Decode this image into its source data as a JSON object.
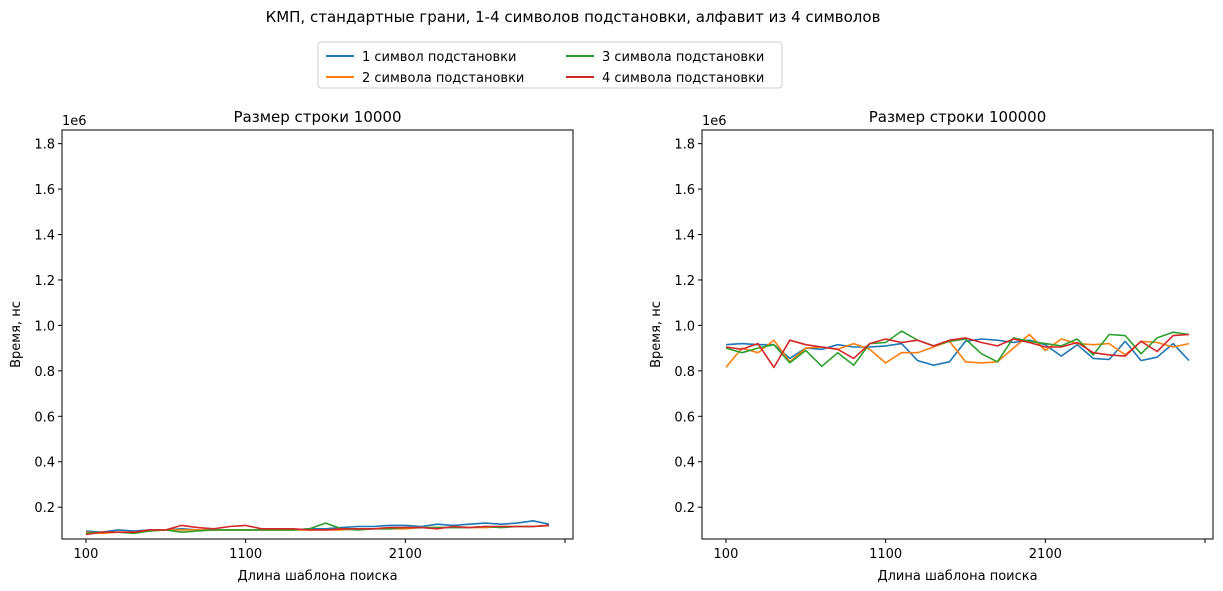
{
  "suptitle": "КМП, стандартные грани, 1-4 символов подстановки, алфавит из 4 символов",
  "legend": {
    "placement": "top-center",
    "entries": [
      {
        "label": "1 символ подстановки",
        "color": "#1f77b4"
      },
      {
        "label": "2 символа подстановки",
        "color": "#ff7f0e"
      },
      {
        "label": "3 символа подстановки",
        "color": "#2ca02c"
      },
      {
        "label": "4 символа подстановки",
        "color": "#d62728"
      }
    ]
  },
  "chart_data": [
    {
      "type": "line",
      "title": "Размер строки 10000",
      "xlabel": "Длина шаблона поиска",
      "ylabel": "Время, нс",
      "y_offset_label": "1e6",
      "xlim": [
        -50,
        3150
      ],
      "ylim": [
        0.06,
        1.86
      ],
      "xticks": [
        100,
        1100,
        2100,
        3100
      ],
      "xtick_labels": [
        "100",
        "1100",
        "2100",
        ""
      ],
      "yticks": [
        0.2,
        0.4,
        0.6,
        0.8,
        1.0,
        1.2,
        1.4,
        1.6,
        1.8
      ],
      "ytick_labels": [
        "0.2",
        "0.4",
        "0.6",
        "0.8",
        "1.0",
        "1.2",
        "1.4",
        "1.6",
        "1.8"
      ],
      "x": [
        100,
        200,
        300,
        400,
        500,
        600,
        700,
        800,
        900,
        1000,
        1100,
        1200,
        1300,
        1400,
        1500,
        1600,
        1700,
        1800,
        1900,
        2000,
        2100,
        2200,
        2300,
        2400,
        2500,
        2600,
        2700,
        2800,
        2900,
        3000
      ],
      "series": [
        {
          "name": "1 символ подстановки",
          "color": "#1f77b4",
          "values": [
            0.095,
            0.09,
            0.1,
            0.095,
            0.1,
            0.1,
            0.105,
            0.1,
            0.1,
            0.1,
            0.1,
            0.1,
            0.1,
            0.1,
            0.105,
            0.105,
            0.11,
            0.115,
            0.115,
            0.12,
            0.12,
            0.115,
            0.125,
            0.12,
            0.125,
            0.13,
            0.125,
            0.13,
            0.14,
            0.125
          ]
        },
        {
          "name": "2 символа подстановки",
          "color": "#ff7f0e",
          "values": [
            0.09,
            0.085,
            0.09,
            0.09,
            0.095,
            0.1,
            0.1,
            0.1,
            0.1,
            0.1,
            0.1,
            0.1,
            0.1,
            0.1,
            0.1,
            0.1,
            0.1,
            0.105,
            0.105,
            0.105,
            0.105,
            0.11,
            0.11,
            0.11,
            0.11,
            0.11,
            0.115,
            0.115,
            0.115,
            0.12
          ]
        },
        {
          "name": "3 символа подстановки",
          "color": "#2ca02c",
          "values": [
            0.085,
            0.09,
            0.09,
            0.085,
            0.095,
            0.1,
            0.09,
            0.095,
            0.1,
            0.1,
            0.1,
            0.1,
            0.1,
            0.1,
            0.105,
            0.13,
            0.105,
            0.1,
            0.105,
            0.105,
            0.11,
            0.11,
            0.11,
            0.11,
            0.11,
            0.115,
            0.11,
            0.115,
            0.115,
            0.12
          ]
        },
        {
          "name": "4 символа подстановки",
          "color": "#d62728",
          "values": [
            0.08,
            0.09,
            0.09,
            0.09,
            0.1,
            0.1,
            0.12,
            0.11,
            0.105,
            0.115,
            0.12,
            0.105,
            0.105,
            0.105,
            0.1,
            0.1,
            0.105,
            0.105,
            0.105,
            0.11,
            0.11,
            0.11,
            0.105,
            0.115,
            0.11,
            0.115,
            0.115,
            0.115,
            0.115,
            0.12
          ]
        }
      ]
    },
    {
      "type": "line",
      "title": "Размер строки 100000",
      "xlabel": "Длина шаблона поиска",
      "ylabel": "Время, нс",
      "y_offset_label": "1e6",
      "xlim": [
        -50,
        3150
      ],
      "ylim": [
        0.06,
        1.86
      ],
      "xticks": [
        100,
        1100,
        2100,
        3100
      ],
      "xtick_labels": [
        "100",
        "1100",
        "2100",
        ""
      ],
      "yticks": [
        0.2,
        0.4,
        0.6,
        0.8,
        1.0,
        1.2,
        1.4,
        1.6,
        1.8
      ],
      "ytick_labels": [
        "0.2",
        "0.4",
        "0.6",
        "0.8",
        "1.0",
        "1.2",
        "1.4",
        "1.6",
        "1.8"
      ],
      "x": [
        100,
        200,
        300,
        400,
        500,
        600,
        700,
        800,
        900,
        1000,
        1100,
        1200,
        1300,
        1400,
        1500,
        1600,
        1700,
        1800,
        1900,
        2000,
        2100,
        2200,
        2300,
        2400,
        2500,
        2600,
        2700,
        2800,
        2900,
        3000
      ],
      "series": [
        {
          "name": "1 символ подстановки",
          "color": "#1f77b4",
          "values": [
            0.915,
            0.92,
            0.915,
            0.915,
            0.855,
            0.9,
            0.895,
            0.915,
            0.905,
            0.905,
            0.91,
            0.92,
            0.845,
            0.825,
            0.84,
            0.93,
            0.94,
            0.935,
            0.925,
            0.935,
            0.915,
            0.865,
            0.915,
            0.855,
            0.85,
            0.93,
            0.845,
            0.86,
            0.92,
            0.845
          ]
        },
        {
          "name": "2 символа подстановки",
          "color": "#ff7f0e",
          "values": [
            0.815,
            0.9,
            0.88,
            0.935,
            0.84,
            0.9,
            0.905,
            0.895,
            0.92,
            0.895,
            0.835,
            0.88,
            0.88,
            0.905,
            0.93,
            0.84,
            0.835,
            0.84,
            0.9,
            0.96,
            0.89,
            0.94,
            0.92,
            0.915,
            0.92,
            0.87,
            0.93,
            0.925,
            0.905,
            0.92
          ]
        },
        {
          "name": "3 символа подстановки",
          "color": "#2ca02c",
          "values": [
            0.9,
            0.88,
            0.9,
            0.915,
            0.835,
            0.89,
            0.82,
            0.88,
            0.825,
            0.92,
            0.925,
            0.975,
            0.935,
            0.91,
            0.93,
            0.94,
            0.875,
            0.84,
            0.945,
            0.93,
            0.92,
            0.91,
            0.94,
            0.87,
            0.96,
            0.955,
            0.875,
            0.945,
            0.97,
            0.96
          ]
        },
        {
          "name": "4 символа подстановки",
          "color": "#d62728",
          "values": [
            0.905,
            0.895,
            0.92,
            0.815,
            0.935,
            0.915,
            0.905,
            0.895,
            0.855,
            0.92,
            0.94,
            0.925,
            0.935,
            0.91,
            0.935,
            0.945,
            0.925,
            0.91,
            0.94,
            0.925,
            0.905,
            0.905,
            0.925,
            0.88,
            0.87,
            0.865,
            0.93,
            0.885,
            0.955,
            0.96
          ]
        }
      ]
    }
  ]
}
